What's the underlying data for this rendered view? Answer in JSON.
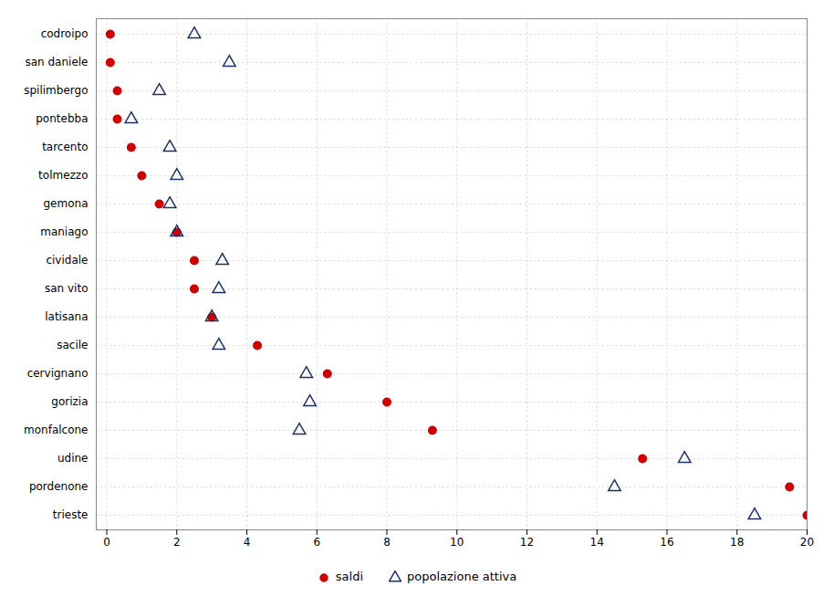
{
  "chart_data": {
    "type": "dot",
    "categories": [
      "codroipo",
      "san daniele",
      "spilimbergo",
      "pontebba",
      "tarcento",
      "tolmezzo",
      "gemona",
      "maniago",
      "cividale",
      "san vito",
      "latisana",
      "sacile",
      "cervignano",
      "gorizia",
      "monfalcone",
      "udine",
      "pordenone",
      "trieste"
    ],
    "series": [
      {
        "name": "saldi",
        "color": "#cc0000",
        "marker": "circle",
        "values": [
          0.1,
          0.1,
          0.3,
          0.3,
          0.7,
          1.0,
          1.5,
          2.0,
          2.5,
          2.5,
          3.0,
          4.3,
          6.3,
          8.0,
          9.3,
          15.3,
          19.5,
          20.0
        ]
      },
      {
        "name": "popolazione attiva",
        "color": "#1a3060",
        "marker": "triangle-open",
        "values": [
          2.5,
          3.5,
          1.5,
          0.7,
          1.8,
          2.0,
          1.8,
          2.0,
          3.3,
          3.2,
          3.0,
          3.2,
          5.7,
          5.8,
          5.5,
          16.5,
          14.5,
          18.5
        ]
      }
    ],
    "xlim": [
      -0.3,
      20
    ],
    "xticks": [
      0,
      2,
      4,
      6,
      8,
      10,
      12,
      14,
      16,
      18,
      20
    ],
    "grid": true,
    "legend": "bottom"
  }
}
